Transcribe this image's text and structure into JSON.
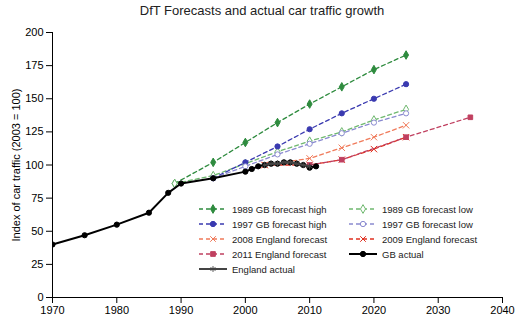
{
  "chart_data": {
    "type": "line",
    "title": "DfT Forecasts and actual car traffic growth",
    "ylabel": "Index of car traffic (2003 = 100)",
    "xlim": [
      1970,
      2040
    ],
    "xticks": [
      1970,
      1980,
      1990,
      2000,
      2010,
      2020,
      2030,
      2040
    ],
    "ylim": [
      0,
      200
    ],
    "yticks": [
      0,
      25,
      50,
      75,
      100,
      125,
      150,
      175,
      200
    ],
    "grid": false,
    "legend": "bottom-right",
    "series": [
      {
        "name": "1989 GB forecast high",
        "color": "#2e8b3e",
        "line_style": "dashed",
        "marker": "diamond",
        "x": [
          1989,
          1995,
          2000,
          2005,
          2010,
          2015,
          2020,
          2025
        ],
        "values": [
          86,
          102,
          117,
          132,
          146,
          159,
          172,
          183
        ]
      },
      {
        "name": "1989 GB forecast low",
        "color": "#6fb86f",
        "line_style": "dashed",
        "marker": "diamond-open",
        "x": [
          1989,
          1995,
          2000,
          2005,
          2010,
          2015,
          2020,
          2025
        ],
        "values": [
          86,
          92,
          101,
          110,
          118,
          125,
          134,
          142
        ]
      },
      {
        "name": "1997 GB forecast high",
        "color": "#3a3ab0",
        "line_style": "dashed",
        "marker": "circle",
        "x": [
          1995,
          2000,
          2005,
          2010,
          2015,
          2020,
          2025
        ],
        "values": [
          90,
          102,
          114,
          127,
          139,
          150,
          161
        ]
      },
      {
        "name": "1997 GB forecast low",
        "color": "#8a8ad0",
        "line_style": "dashed",
        "marker": "circle-open",
        "x": [
          1995,
          2000,
          2005,
          2010,
          2015,
          2020,
          2025
        ],
        "values": [
          90,
          99,
          108,
          116,
          124,
          132,
          139
        ]
      },
      {
        "name": "2008 England forecast",
        "color": "#f07a5a",
        "line_style": "dashed",
        "marker": "x",
        "x": [
          2003,
          2010,
          2015,
          2020,
          2025
        ],
        "values": [
          100,
          105,
          113,
          121,
          130
        ]
      },
      {
        "name": "2009 England forecast",
        "color": "#e03020",
        "line_style": "dashed",
        "marker": "x",
        "x": [
          2003,
          2010,
          2015,
          2020,
          2025
        ],
        "values": [
          100,
          100,
          104,
          112,
          121
        ]
      },
      {
        "name": "2011 England forecast",
        "color": "#c04060",
        "line_style": "dashed",
        "marker": "square",
        "x": [
          2010,
          2015,
          2025,
          2035
        ],
        "values": [
          100,
          104,
          121,
          136
        ]
      },
      {
        "name": "GB actual",
        "color": "#000000",
        "line_style": "solid",
        "marker": "circle",
        "x": [
          1970,
          1975,
          1980,
          1985,
          1988,
          1990,
          1995,
          2000,
          2001,
          2002,
          2003,
          2004,
          2005,
          2006,
          2007,
          2008,
          2009,
          2010,
          2011
        ],
        "values": [
          40,
          47,
          55,
          64,
          79,
          86,
          90,
          95,
          97,
          99,
          100,
          101,
          101,
          102,
          102,
          101,
          100,
          98,
          99
        ]
      },
      {
        "name": "England actual",
        "color": "#444444",
        "line_style": "solid",
        "marker": "asterisk",
        "x": [
          2003,
          2004,
          2005,
          2006,
          2007,
          2008,
          2009,
          2010
        ],
        "values": [
          100,
          101,
          101,
          102,
          102,
          101,
          100,
          99
        ]
      }
    ]
  }
}
